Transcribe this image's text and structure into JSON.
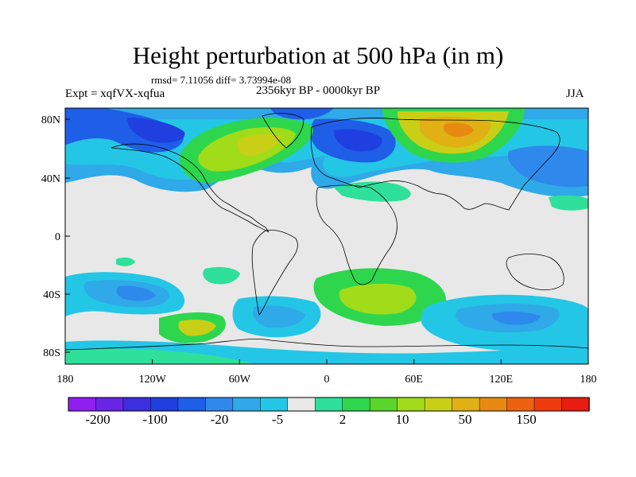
{
  "title": "Height perturbation at 500 hPa (in m)",
  "stats": "rmsd= 7.11056 diff= 3.73994e-08",
  "experiment": "Expt = xqfVX-xqfua",
  "period": "2356kyr BP - 0000kyr BP",
  "season": "JJA",
  "lon_ticks": [
    "180",
    "120W",
    "60W",
    "0",
    "60E",
    "120E",
    "180"
  ],
  "lat_ticks": [
    "80N",
    "40N",
    "0",
    "40S",
    "80S"
  ],
  "colorbar": {
    "colors": [
      "#8f1ff0",
      "#6a24e6",
      "#3d2ee0",
      "#1f3fe0",
      "#1f5ee6",
      "#2f88ec",
      "#2fa9e8",
      "#24c6e6",
      "#e8e8e8",
      "#2ee09a",
      "#2ed64e",
      "#5ad62a",
      "#a0dc1a",
      "#c9cf16",
      "#e0b014",
      "#e88a12",
      "#ec6210",
      "#ee3c0e",
      "#e81c10"
    ],
    "labels": [
      "-200",
      "-100",
      "-20",
      "-5",
      "2",
      "10",
      "50",
      "150"
    ]
  }
}
